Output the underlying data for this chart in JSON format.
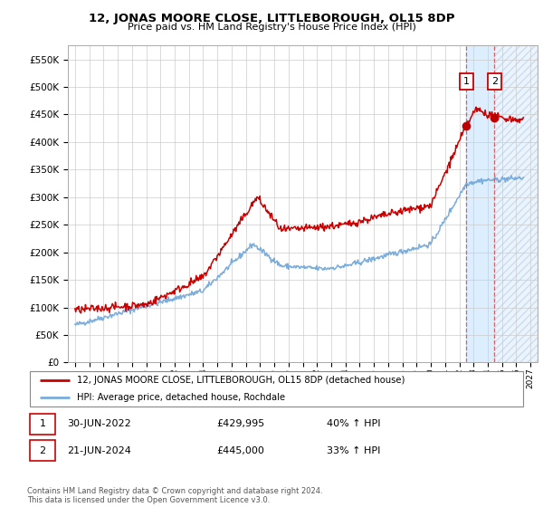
{
  "title": "12, JONAS MOORE CLOSE, LITTLEBOROUGH, OL15 8DP",
  "subtitle": "Price paid vs. HM Land Registry's House Price Index (HPI)",
  "hpi_label": "HPI: Average price, detached house, Rochdale",
  "property_label": "12, JONAS MOORE CLOSE, LITTLEBOROUGH, OL15 8DP (detached house)",
  "red_color": "#cc0000",
  "blue_color": "#7aaddc",
  "shade_color": "#ddeeff",
  "hatch_color": "#bbccdd",
  "point1_date": "30-JUN-2022",
  "point1_price": 429995,
  "point1_hpi": "40% ↑ HPI",
  "point2_date": "21-JUN-2024",
  "point2_price": 445000,
  "point2_hpi": "33% ↑ HPI",
  "ylim": [
    0,
    575000
  ],
  "yticks": [
    0,
    50000,
    100000,
    150000,
    200000,
    250000,
    300000,
    350000,
    400000,
    450000,
    500000,
    550000
  ],
  "footer": "Contains HM Land Registry data © Crown copyright and database right 2024.\nThis data is licensed under the Open Government Licence v3.0.",
  "vline_x1": 2022.5,
  "vline_x2": 2024.47,
  "xmin": 1994.5,
  "xmax": 2027.5
}
